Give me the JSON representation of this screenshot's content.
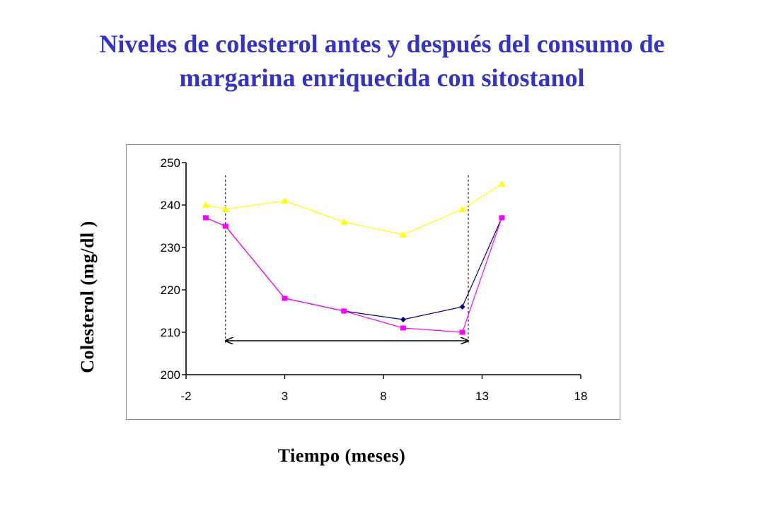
{
  "chart_data": {
    "type": "line",
    "title": [
      "Niveles de colesterol antes y después del consumo de",
      "margarina enriquecida con sitostanol"
    ],
    "xlabel": "Tiempo (meses)",
    "ylabel": "Colesterol (mg/dl )",
    "xlim": [
      -2,
      18
    ],
    "ylim": [
      200,
      250
    ],
    "x_ticks": [
      -2,
      3,
      8,
      13,
      18
    ],
    "y_ticks": [
      200,
      210,
      220,
      230,
      240,
      250
    ],
    "grid": false,
    "legend": "none",
    "series": [
      {
        "color": "#ffff00",
        "marker": "triangle",
        "points": [
          [
            -1,
            240
          ],
          [
            0,
            239
          ],
          [
            3,
            241
          ],
          [
            6,
            236
          ],
          [
            9,
            233
          ],
          [
            12,
            239
          ],
          [
            14,
            245
          ]
        ]
      },
      {
        "color": "#000080",
        "marker": "diamond",
        "points": [
          [
            -1,
            237
          ],
          [
            0,
            235
          ],
          [
            3,
            218
          ],
          [
            6,
            215
          ],
          [
            9,
            213
          ],
          [
            12,
            216
          ],
          [
            14,
            237
          ]
        ]
      },
      {
        "color": "#ff00ff",
        "marker": "square",
        "points": [
          [
            -1,
            237
          ],
          [
            0,
            235
          ],
          [
            3,
            218
          ],
          [
            6,
            215
          ],
          [
            9,
            211
          ],
          [
            12,
            210
          ],
          [
            14,
            237
          ]
        ]
      }
    ],
    "annotations": {
      "vlines": [
        0,
        12.3
      ],
      "interval_arrow": {
        "x_start": 0,
        "x_end": 12.3,
        "y": 208
      }
    }
  }
}
